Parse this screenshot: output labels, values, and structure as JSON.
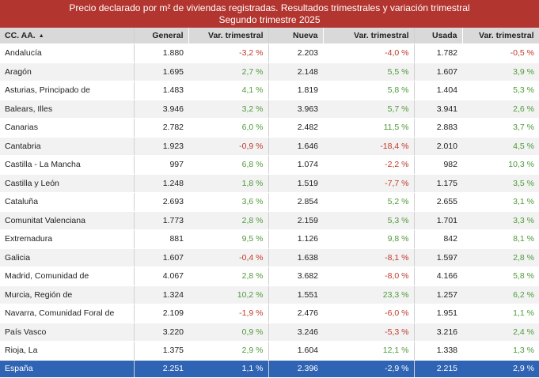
{
  "title": {
    "line1": "Precio declarado por m² de viviendas registradas. Resultados trimestrales y variación trimestral",
    "line2": "Segundo trimestre 2025"
  },
  "headers": {
    "region": "CC. AA.",
    "sort_indicator": "▲",
    "general": "General",
    "var1": "Var. trimestral",
    "nueva": "Nueva",
    "var2": "Var. trimestral",
    "usada": "Usada",
    "var3": "Var. trimestral"
  },
  "rows": [
    {
      "region": "Andalucía",
      "general": "1.880",
      "var_general": "-3,2 %",
      "nueva": "2.203",
      "var_nueva": "-4,0 %",
      "usada": "1.782",
      "var_usada": "-0,5 %"
    },
    {
      "region": "Aragón",
      "general": "1.695",
      "var_general": "2,7 %",
      "nueva": "2.148",
      "var_nueva": "5,5 %",
      "usada": "1.607",
      "var_usada": "3,9 %"
    },
    {
      "region": "Asturias, Principado de",
      "general": "1.483",
      "var_general": "4,1 %",
      "nueva": "1.819",
      "var_nueva": "5,8 %",
      "usada": "1.404",
      "var_usada": "5,3 %"
    },
    {
      "region": "Balears, Illes",
      "general": "3.946",
      "var_general": "3,2 %",
      "nueva": "3.963",
      "var_nueva": "5,7 %",
      "usada": "3.941",
      "var_usada": "2,6 %"
    },
    {
      "region": "Canarias",
      "general": "2.782",
      "var_general": "6,0 %",
      "nueva": "2.482",
      "var_nueva": "11,5 %",
      "usada": "2.883",
      "var_usada": "3,7 %"
    },
    {
      "region": "Cantabria",
      "general": "1.923",
      "var_general": "-0,9 %",
      "nueva": "1.646",
      "var_nueva": "-18,4 %",
      "usada": "2.010",
      "var_usada": "4,5 %"
    },
    {
      "region": "Castilla - La Mancha",
      "general": "997",
      "var_general": "6,8 %",
      "nueva": "1.074",
      "var_nueva": "-2,2 %",
      "usada": "982",
      "var_usada": "10,3 %"
    },
    {
      "region": "Castilla y León",
      "general": "1.248",
      "var_general": "1,8 %",
      "nueva": "1.519",
      "var_nueva": "-7,7 %",
      "usada": "1.175",
      "var_usada": "3,5 %"
    },
    {
      "region": "Cataluña",
      "general": "2.693",
      "var_general": "3,6 %",
      "nueva": "2.854",
      "var_nueva": "5,2 %",
      "usada": "2.655",
      "var_usada": "3,1 %"
    },
    {
      "region": "Comunitat Valenciana",
      "general": "1.773",
      "var_general": "2,8 %",
      "nueva": "2.159",
      "var_nueva": "5,3 %",
      "usada": "1.701",
      "var_usada": "3,3 %"
    },
    {
      "region": "Extremadura",
      "general": "881",
      "var_general": "9,5 %",
      "nueva": "1.126",
      "var_nueva": "9,8 %",
      "usada": "842",
      "var_usada": "8,1 %"
    },
    {
      "region": "Galicia",
      "general": "1.607",
      "var_general": "-0,4 %",
      "nueva": "1.638",
      "var_nueva": "-8,1 %",
      "usada": "1.597",
      "var_usada": "2,8 %"
    },
    {
      "region": "Madrid, Comunidad de",
      "general": "4.067",
      "var_general": "2,8 %",
      "nueva": "3.682",
      "var_nueva": "-8,0 %",
      "usada": "4.166",
      "var_usada": "5,8 %"
    },
    {
      "region": "Murcia, Región de",
      "general": "1.324",
      "var_general": "10,2 %",
      "nueva": "1.551",
      "var_nueva": "23,3 %",
      "usada": "1.257",
      "var_usada": "6,2 %"
    },
    {
      "region": "Navarra, Comunidad Foral de",
      "general": "2.109",
      "var_general": "-1,9 %",
      "nueva": "2.476",
      "var_nueva": "-6,0 %",
      "usada": "1.951",
      "var_usada": "1,1 %"
    },
    {
      "region": "País Vasco",
      "general": "3.220",
      "var_general": "0,9 %",
      "nueva": "3.246",
      "var_nueva": "-5,3 %",
      "usada": "3.216",
      "var_usada": "2,4 %"
    },
    {
      "region": "Rioja, La",
      "general": "1.375",
      "var_general": "2,9 %",
      "nueva": "1.604",
      "var_nueva": "12,1 %",
      "usada": "1.338",
      "var_usada": "1,3 %"
    }
  ],
  "total": {
    "region": "España",
    "general": "2.251",
    "var_general": "1,1 %",
    "nueva": "2.396",
    "var_nueva": "-2,9 %",
    "usada": "2.215",
    "var_usada": "2,9 %"
  },
  "colors": {
    "title_bg": "#b2352f",
    "header_bg": "#d9d9d9",
    "total_bg": "#2f63b3",
    "positive": "#4f9a3a",
    "negative": "#c0392b"
  }
}
